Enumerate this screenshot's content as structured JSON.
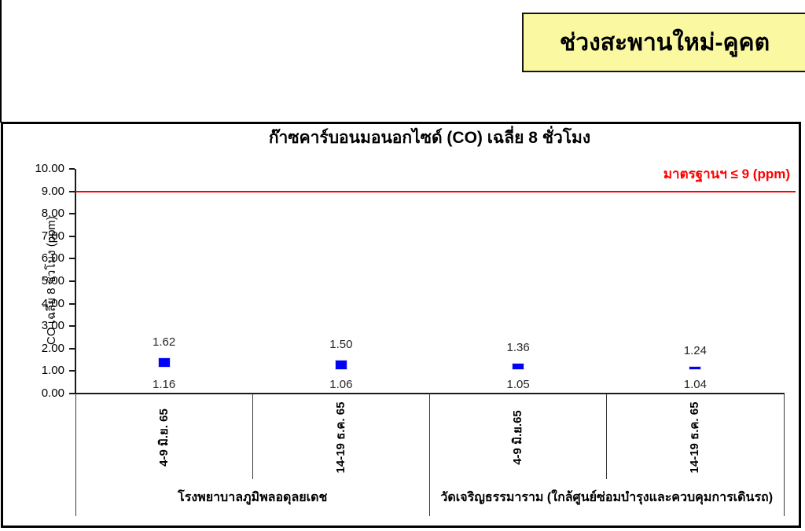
{
  "banner": {
    "text": "ช่วงสะพานใหม่-คูคต",
    "bg_color": "#FAF9A2"
  },
  "chart_data": {
    "type": "bar",
    "subtype": "floating-range-bar",
    "title": "ก๊าซคาร์บอนมอนอกไซด์ (CO) เฉลี่ย 8 ชั่วโมง",
    "ylabel": "CO เฉลี่ย 8 ชั่วโมง (ppm)",
    "xlabel": "",
    "ylim": [
      0,
      10
    ],
    "y_tick_step": 1,
    "y_tick_labels": [
      "0.00",
      "1.00",
      "2.00",
      "3.00",
      "4.00",
      "5.00",
      "6.00",
      "7.00",
      "8.00",
      "9.00",
      "10.00"
    ],
    "grid": "off",
    "legend": "none",
    "standard_line": {
      "value": 9,
      "label": "มาตรฐานฯ ≤ 9 (ppm)",
      "color": "#FF0000"
    },
    "marker_color": "#0202F6",
    "marker_border_color": "#D8D8F2",
    "groups": [
      {
        "label": "โรงพยาบาลภูมิพลอดุลยเดช",
        "points": [
          {
            "x_label": "4-9 มิ.ย. 65",
            "max": 1.62,
            "min": 1.16
          },
          {
            "x_label": "14-19 ธ.ค. 65",
            "max": 1.5,
            "min": 1.06
          }
        ]
      },
      {
        "label": "วัดเจริญธรรมาราม (ใกล้ศูนย์ซ่อมบำรุงและควบคุมการเดินรถ)",
        "points": [
          {
            "x_label": "4-9 มิ.ย.65",
            "max": 1.36,
            "min": 1.05
          },
          {
            "x_label": "14-19 ธ.ค. 65",
            "max": 1.24,
            "min": 1.04
          }
        ]
      }
    ]
  }
}
